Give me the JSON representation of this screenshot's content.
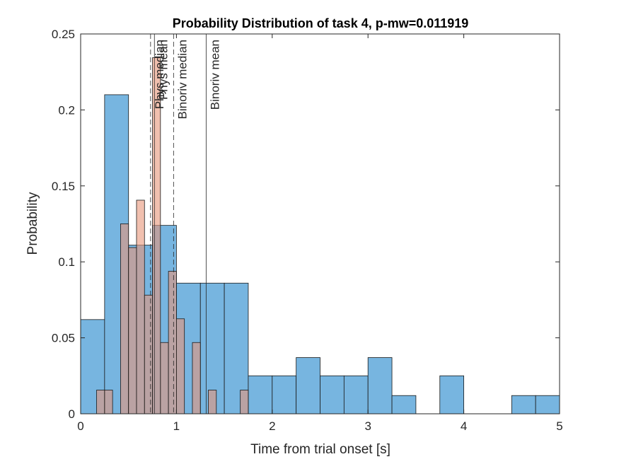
{
  "chart_data": {
    "type": "bar",
    "title": "Probability Distribution of task 4, p-mw=0.011919",
    "xlabel": "Time from trial onset [s]",
    "ylabel": "Probability",
    "xlim": [
      0,
      5
    ],
    "ylim": [
      0,
      0.25
    ],
    "xticks": [
      0,
      1,
      2,
      3,
      4,
      5
    ],
    "xtick_labels": [
      "0",
      "1",
      "2",
      "3",
      "4",
      "5"
    ],
    "yticks": [
      0,
      0.05,
      0.1,
      0.15,
      0.2,
      0.25
    ],
    "ytick_labels": [
      "0",
      "0.05",
      "0.1",
      "0.15",
      "0.2",
      "0.25"
    ],
    "grid": false,
    "series": [
      {
        "label_hidden": true,
        "color": "#77b5e0",
        "bin_width": 0.25,
        "bins_start": [
          0,
          0.25,
          0.5,
          0.75,
          1.0,
          1.25,
          1.5,
          1.75,
          2.0,
          2.25,
          2.5,
          2.75,
          3.0,
          3.25,
          3.5,
          3.75,
          4.0,
          4.25,
          4.5,
          4.75
        ],
        "values": [
          0.062,
          0.21,
          0.111,
          0.124,
          0.086,
          0.086,
          0.086,
          0.025,
          0.025,
          0.037,
          0.025,
          0.025,
          0.037,
          0.012,
          0.0,
          0.025,
          0.0,
          0.0,
          0.012,
          0.012
        ]
      },
      {
        "label_hidden": true,
        "color": "#e8967a",
        "bin_width": 0.0833,
        "bins_start": [
          0.1667,
          0.25,
          0.3333,
          0.4167,
          0.5,
          0.5833,
          0.6667,
          0.75,
          0.8333,
          0.9167,
          1.0,
          1.0833,
          1.1667,
          1.25,
          1.3333,
          1.4167,
          1.5,
          1.5833,
          1.6667
        ],
        "values": [
          0.0156,
          0.0156,
          0.0,
          0.125,
          0.1094,
          0.1406,
          0.0781,
          0.2344,
          0.0469,
          0.0938,
          0.0625,
          0.0,
          0.0469,
          0.0,
          0.0156,
          0.0,
          0.0,
          0.0,
          0.0156
        ]
      }
    ],
    "vlines": [
      {
        "x": 0.73,
        "style": "dashed",
        "label": "Phys median"
      },
      {
        "x": 0.77,
        "style": "solid",
        "label": "Phys mean"
      },
      {
        "x": 0.97,
        "style": "dashed",
        "label": "Binoriv median"
      },
      {
        "x": 1.31,
        "style": "solid",
        "label": "Binoriv mean"
      }
    ]
  }
}
